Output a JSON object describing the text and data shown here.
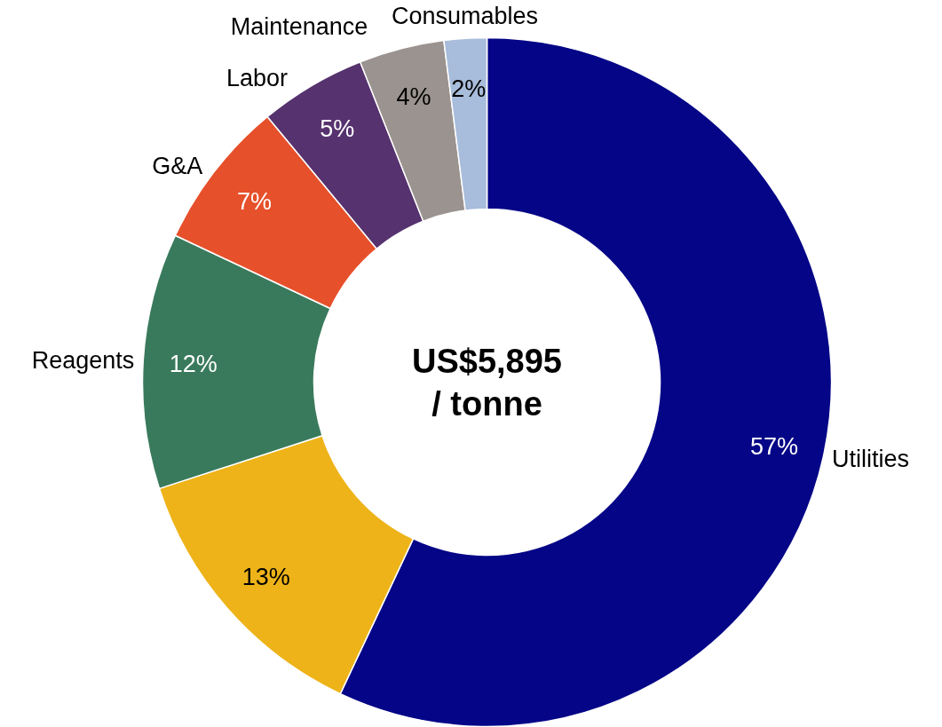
{
  "chart_data": {
    "type": "donut",
    "categories": [
      "Utilities",
      null,
      "Reagents",
      "G&A",
      "Labor",
      "Maintenance",
      "Consumables"
    ],
    "values": [
      57,
      13,
      12,
      7,
      5,
      4,
      2
    ],
    "value_labels": [
      "57%",
      "13%",
      "12%",
      "7%",
      "5%",
      "4%",
      "2%"
    ],
    "colors": [
      "#050587",
      "#edb318",
      "#3a7a5c",
      "#e6502a",
      "#56326e",
      "#9a938f",
      "#a8bcdb"
    ],
    "annotations": [
      "US$5,895\n/ tonne"
    ]
  }
}
